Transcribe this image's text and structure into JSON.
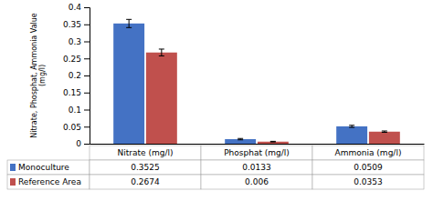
{
  "chart_data": {
    "type": "bar",
    "categories": [
      "Nitrate (mg/l)",
      "Phosphat (mg/l)",
      "Ammonia (mg/l)"
    ],
    "series": [
      {
        "name": "Monoculture",
        "color": "#4472C4",
        "values": [
          0.3525,
          0.0133,
          0.0509
        ],
        "errors": [
          0.012,
          0.002,
          0.003
        ]
      },
      {
        "name": "Reference Area",
        "color": "#C0504D",
        "values": [
          0.2674,
          0.006,
          0.0353
        ],
        "errors": [
          0.01,
          0.001,
          0.002
        ]
      }
    ],
    "ylabel": "Nitrate, Phosphat, Ammonia Value\n(mg/l)",
    "ylim": [
      0,
      0.4
    ],
    "yticks": [
      0,
      0.05,
      0.1,
      0.15,
      0.2,
      0.25,
      0.3,
      0.35,
      0.4
    ],
    "data_labels": true,
    "grid": false
  }
}
